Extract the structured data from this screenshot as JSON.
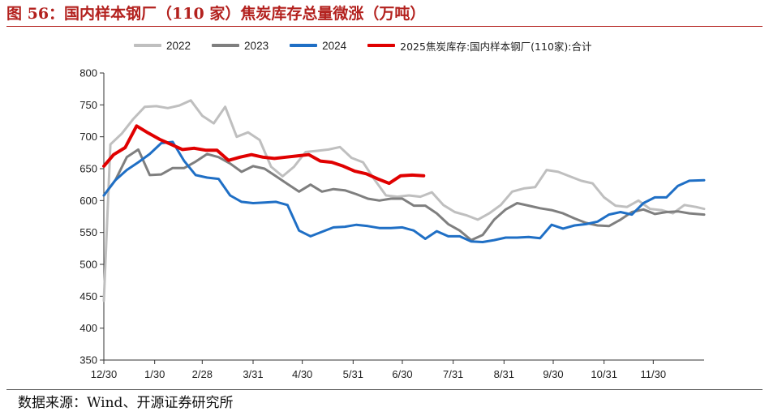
{
  "figure": {
    "title": "图 56：国内样本钢厂（110 家）焦炭库存总量微涨（万吨）",
    "source": "数据来源：Wind、开源证券研究所"
  },
  "chart_data": {
    "type": "line",
    "ylim": [
      350,
      800
    ],
    "yticks": [
      350,
      400,
      450,
      500,
      550,
      600,
      650,
      700,
      750,
      800
    ],
    "x_tick_labels": [
      "12/30",
      "1/30",
      "2/28",
      "3/31",
      "4/30",
      "5/31",
      "6/30",
      "7/31",
      "8/31",
      "9/30",
      "10/31",
      "11/30"
    ],
    "x_tick_days": [
      0,
      31,
      60,
      91,
      121,
      152,
      182,
      213,
      244,
      274,
      305,
      335
    ],
    "x_range_days": [
      0,
      366
    ],
    "grid": false,
    "legend_position": "top",
    "series": [
      {
        "name": "2022",
        "color": "#bfbfbf",
        "x_days": [
          0,
          4,
          11,
          18,
          25,
          32,
          39,
          46,
          53,
          60,
          67,
          74,
          81,
          88,
          95,
          102,
          109,
          116,
          123,
          130,
          137,
          144,
          151,
          158,
          165,
          172,
          179,
          186,
          193,
          200,
          207,
          214,
          221,
          228,
          235,
          242,
          249,
          256,
          263,
          270,
          277,
          284,
          291,
          298,
          305,
          312,
          319,
          326,
          333,
          340,
          347,
          354,
          361,
          366
        ],
        "values": [
          443,
          688,
          705,
          728,
          747,
          748,
          745,
          749,
          757,
          733,
          721,
          747,
          700,
          707,
          695,
          653,
          638,
          653,
          676,
          678,
          680,
          684,
          667,
          660,
          633,
          608,
          606,
          608,
          606,
          613,
          593,
          582,
          577,
          570,
          580,
          593,
          614,
          619,
          621,
          648,
          645,
          638,
          631,
          627,
          605,
          592,
          590,
          600,
          587,
          585,
          580,
          593,
          590,
          587
        ]
      },
      {
        "name": "2023",
        "color": "#7f7f7f",
        "x_days": [
          0,
          7,
          14,
          21,
          28,
          35,
          42,
          49,
          56,
          63,
          70,
          77,
          84,
          91,
          98,
          105,
          112,
          119,
          126,
          133,
          140,
          147,
          154,
          161,
          168,
          175,
          182,
          189,
          196,
          203,
          210,
          217,
          224,
          231,
          238,
          245,
          252,
          259,
          266,
          273,
          280,
          287,
          294,
          301,
          308,
          315,
          322,
          329,
          336,
          343,
          350,
          357,
          366
        ],
        "values": [
          608,
          632,
          668,
          680,
          640,
          641,
          651,
          651,
          661,
          673,
          668,
          658,
          645,
          654,
          650,
          638,
          626,
          614,
          625,
          614,
          618,
          616,
          610,
          603,
          600,
          603,
          603,
          592,
          592,
          580,
          563,
          553,
          538,
          546,
          570,
          586,
          596,
          592,
          588,
          585,
          580,
          572,
          565,
          561,
          560,
          570,
          582,
          586,
          579,
          582,
          583,
          580,
          578
        ]
      },
      {
        "name": "2024",
        "color": "#1f6fc5",
        "x_days": [
          0,
          7,
          14,
          21,
          28,
          35,
          42,
          49,
          56,
          63,
          70,
          77,
          84,
          91,
          98,
          105,
          112,
          119,
          126,
          133,
          140,
          147,
          154,
          161,
          168,
          175,
          182,
          189,
          196,
          203,
          210,
          217,
          224,
          231,
          238,
          245,
          252,
          259,
          266,
          273,
          280,
          287,
          294,
          301,
          308,
          315,
          322,
          329,
          336,
          343,
          350,
          357,
          366
        ],
        "values": [
          608,
          632,
          648,
          660,
          673,
          690,
          692,
          662,
          640,
          636,
          634,
          608,
          598,
          596,
          597,
          598,
          593,
          553,
          544,
          551,
          558,
          559,
          562,
          560,
          557,
          557,
          558,
          553,
          540,
          552,
          544,
          544,
          536,
          535,
          538,
          542,
          542,
          543,
          541,
          562,
          556,
          561,
          563,
          567,
          578,
          582,
          578,
          596,
          605,
          605,
          623,
          631,
          632
        ]
      },
      {
        "name": "2025焦炭库存:国内样本钢厂(110家):合计",
        "color": "#e00000",
        "x_days": [
          0,
          6,
          13,
          20,
          27,
          34,
          41,
          48,
          55,
          62,
          69,
          76,
          83,
          90,
          97,
          104,
          111,
          118,
          125,
          132,
          139,
          146,
          153,
          160,
          167,
          174,
          181,
          188,
          195
        ],
        "values": [
          654,
          672,
          683,
          717,
          706,
          696,
          688,
          680,
          682,
          679,
          679,
          663,
          668,
          672,
          668,
          666,
          668,
          670,
          672,
          662,
          660,
          654,
          646,
          642,
          634,
          627,
          639,
          640,
          639
        ]
      }
    ]
  }
}
